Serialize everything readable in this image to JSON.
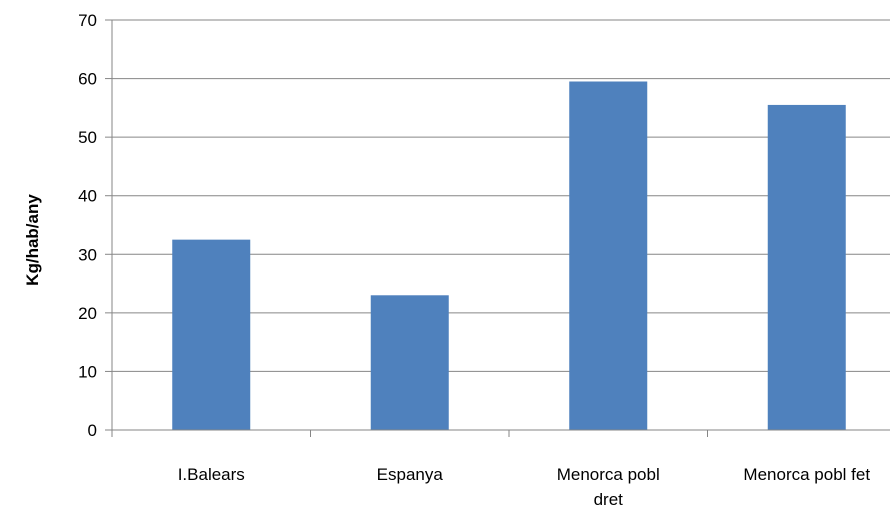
{
  "chart_data": {
    "type": "bar",
    "categories": [
      [
        "I.Balears"
      ],
      [
        "Espanya"
      ],
      [
        "Menorca pobl",
        "dret"
      ],
      [
        "Menorca pobl fet"
      ]
    ],
    "values": [
      32.5,
      23,
      59.5,
      55.5
    ],
    "xlabel": "",
    "ylabel": "Kg/hab/any",
    "ylim": [
      0,
      70
    ],
    "yticks": [
      0,
      10,
      20,
      30,
      40,
      50,
      60,
      70
    ],
    "grid": true,
    "legend": "none",
    "colors": {
      "bar": "#4f81bd",
      "grid": "#868686",
      "axis": "#868686"
    }
  }
}
